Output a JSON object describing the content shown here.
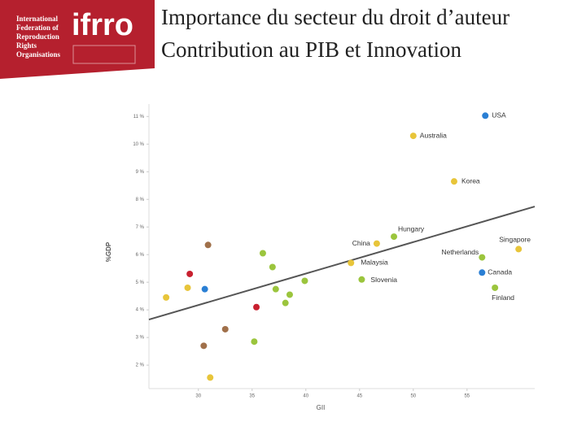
{
  "logo": {
    "lines": [
      "International",
      "Federation of",
      "Reproduction",
      "Rights",
      "Organisations"
    ],
    "brand": "ifrro"
  },
  "title": [
    "Importance du secteur du droit d’auteur",
    "Contribution au PIB et Innovation"
  ],
  "chart_data": {
    "type": "scatter",
    "xlabel": "GII",
    "ylabel": "%GDP",
    "xlim": [
      25.4,
      61.3
    ],
    "ylim": [
      1.15,
      11.45
    ],
    "xticks": [
      30,
      35,
      40,
      45,
      50,
      55
    ],
    "yticks": [
      {
        "value": 2,
        "label": "2 %"
      },
      {
        "value": 3,
        "label": "3 %"
      },
      {
        "value": 4,
        "label": "4 %"
      },
      {
        "value": 5,
        "label": "5 %"
      },
      {
        "value": 6,
        "label": "6 %"
      },
      {
        "value": 7,
        "label": "7 %"
      },
      {
        "value": 8,
        "label": "8 %"
      },
      {
        "value": 9,
        "label": "9 %"
      },
      {
        "value": 10,
        "label": "10 %"
      },
      {
        "value": 11,
        "label": "11 %"
      }
    ],
    "x": [
      56.7,
      50.0,
      53.8,
      48.2,
      46.6,
      59.8,
      56.4,
      44.2,
      56.4,
      45.2,
      57.6,
      27.0,
      29.0,
      29.2,
      30.6,
      30.9,
      36.0,
      36.9,
      37.2,
      38.5,
      38.1,
      39.9,
      35.4,
      32.5,
      30.5,
      35.2,
      31.1
    ],
    "values": [
      11.03,
      10.3,
      8.65,
      6.65,
      6.4,
      6.2,
      5.9,
      5.7,
      5.35,
      5.1,
      4.8,
      4.45,
      4.8,
      5.3,
      4.75,
      6.35,
      6.05,
      5.55,
      4.75,
      4.55,
      4.25,
      5.05,
      4.1,
      3.3,
      2.7,
      2.85,
      1.55
    ],
    "labels": [
      "USA",
      "Australia",
      "Korea",
      "Hungary",
      "China",
      "Singapore",
      "Netherlands",
      "Malaysia",
      "Canada",
      "Slovenia",
      "Finland",
      null,
      null,
      null,
      null,
      null,
      null,
      null,
      null,
      null,
      null,
      null,
      null,
      null,
      null,
      null,
      null
    ],
    "colors": [
      "#2a7fd4",
      "#e8c53a",
      "#e8c53a",
      "#9bc53d",
      "#e8c53a",
      "#e8c53a",
      "#9bc53d",
      "#e8c53a",
      "#2a7fd4",
      "#9bc53d",
      "#9bc53d",
      "#e8c53a",
      "#e8c53a",
      "#c8202f",
      "#2a7fd4",
      "#a0704a",
      "#9bc53d",
      "#9bc53d",
      "#9bc53d",
      "#9bc53d",
      "#9bc53d",
      "#9bc53d",
      "#c8202f",
      "#a0704a",
      "#a0704a",
      "#9bc53d",
      "#e8c53a"
    ],
    "trendline": {
      "x": [
        25.4,
        61.3
      ],
      "values": [
        3.65,
        7.74
      ],
      "color": "#555555"
    }
  }
}
